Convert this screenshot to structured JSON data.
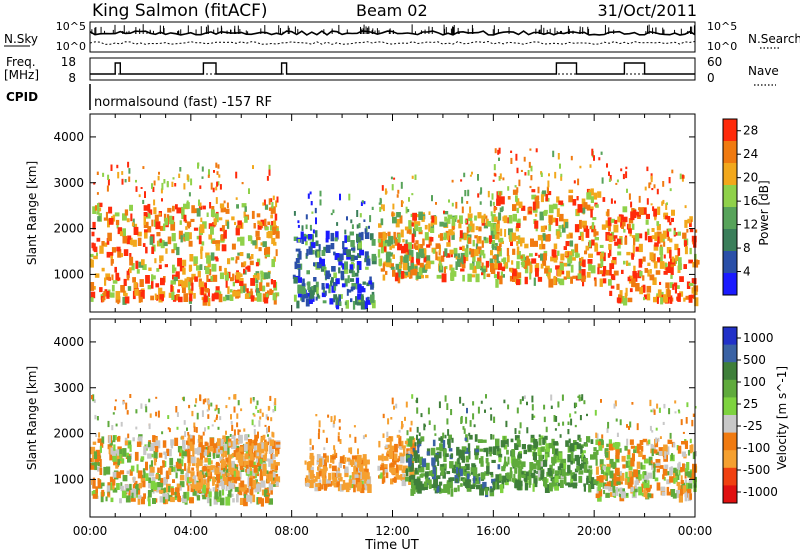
{
  "header": {
    "site": "King Salmon (fitACF)",
    "beam": "Beam 02",
    "date": "31/Oct/2011"
  },
  "sky_panel": {
    "left_label": "N.Sky",
    "right_label": "N.Search",
    "left_ticks": [
      "10^5",
      "10^0"
    ],
    "right_ticks": [
      "10^5",
      "10^0"
    ]
  },
  "freq_panel": {
    "left_label_line1": "Freq.",
    "left_label_line2": "[MHz]",
    "right_label": "Nave",
    "left_ticks": [
      "18",
      "8"
    ],
    "right_ticks": [
      "60",
      "0"
    ]
  },
  "cpid_panel": {
    "label": "CPID",
    "program": "normalsound (fast) -157 RF"
  },
  "colors": {
    "power_scale": [
      "#1b1bff",
      "#2a4fa8",
      "#3a7e5a",
      "#57a35a",
      "#8fd14a",
      "#f2a81c",
      "#f07a10",
      "#ff2a0a"
    ],
    "velocity_scale": [
      "#2131c8",
      "#3a62a4",
      "#3f7f3a",
      "#5faa3c",
      "#7ed33f",
      "#c8c8c8",
      "#f07a10",
      "#f5a030",
      "#f04010",
      "#e01010"
    ]
  },
  "chart_data": [
    {
      "type": "heatmap",
      "title": "",
      "xlabel": "",
      "ylabel": "Slant Range [km]",
      "xlim": [
        "00:00",
        "24:00"
      ],
      "ylim": [
        180,
        4500
      ],
      "x_ticks": [
        "00:00",
        "04:00",
        "08:00",
        "12:00",
        "16:00",
        "20:00",
        "00:00"
      ],
      "y_ticks": [
        1000,
        2000,
        3000,
        4000
      ],
      "colorbar": {
        "label": "Power [dB]",
        "ticks": [
          4,
          8,
          12,
          16,
          20,
          24,
          28
        ],
        "range": [
          0,
          30
        ]
      },
      "scatter_regions": [
        {
          "hours": [
            0.0,
            7.4
          ],
          "range_km": [
            400,
            2500
          ],
          "dominant_power_db": 22
        },
        {
          "hours": [
            8.0,
            11.2
          ],
          "range_km": [
            300,
            1900
          ],
          "dominant_power_db": 8
        },
        {
          "hours": [
            11.4,
            16.2
          ],
          "range_km": [
            900,
            2300
          ],
          "dominant_power_db": 20
        },
        {
          "hours": [
            16.0,
            20.5
          ],
          "range_km": [
            800,
            2800
          ],
          "dominant_power_db": 22
        },
        {
          "hours": [
            20.5,
            24.0
          ],
          "range_km": [
            400,
            2400
          ],
          "dominant_power_db": 24
        }
      ]
    },
    {
      "type": "heatmap",
      "title": "",
      "xlabel": "Time UT",
      "ylabel": "Slant Range [km]",
      "xlim": [
        "00:00",
        "24:00"
      ],
      "ylim": [
        180,
        4500
      ],
      "x_ticks": [
        "00:00",
        "04:00",
        "08:00",
        "12:00",
        "16:00",
        "20:00",
        "00:00"
      ],
      "y_ticks": [
        1000,
        2000,
        3000,
        4000
      ],
      "colorbar": {
        "label": "Velocity [m s^-1]",
        "ticks": [
          1000,
          500,
          100,
          25,
          -25,
          -100,
          -500,
          -1000
        ]
      },
      "scatter_regions": [
        {
          "hours": [
            0.0,
            7.4
          ],
          "range_km": [
            500,
            1900
          ],
          "dominant_velocity": 0
        },
        {
          "hours": [
            3.8,
            7.4
          ],
          "range_km": [
            800,
            1900
          ],
          "dominant_velocity": -100
        },
        {
          "hours": [
            8.5,
            11.0
          ],
          "range_km": [
            800,
            1500
          ],
          "dominant_velocity": -100
        },
        {
          "hours": [
            11.4,
            12.8
          ],
          "range_km": [
            900,
            1900
          ],
          "dominant_velocity": -100
        },
        {
          "hours": [
            12.5,
            16.2
          ],
          "range_km": [
            700,
            1900
          ],
          "dominant_velocity": 200
        },
        {
          "hours": [
            16.2,
            20.0
          ],
          "range_km": [
            800,
            1900
          ],
          "dominant_velocity": 150
        },
        {
          "hours": [
            20.0,
            24.0
          ],
          "range_km": [
            600,
            1800
          ],
          "dominant_velocity": 0
        }
      ]
    }
  ]
}
